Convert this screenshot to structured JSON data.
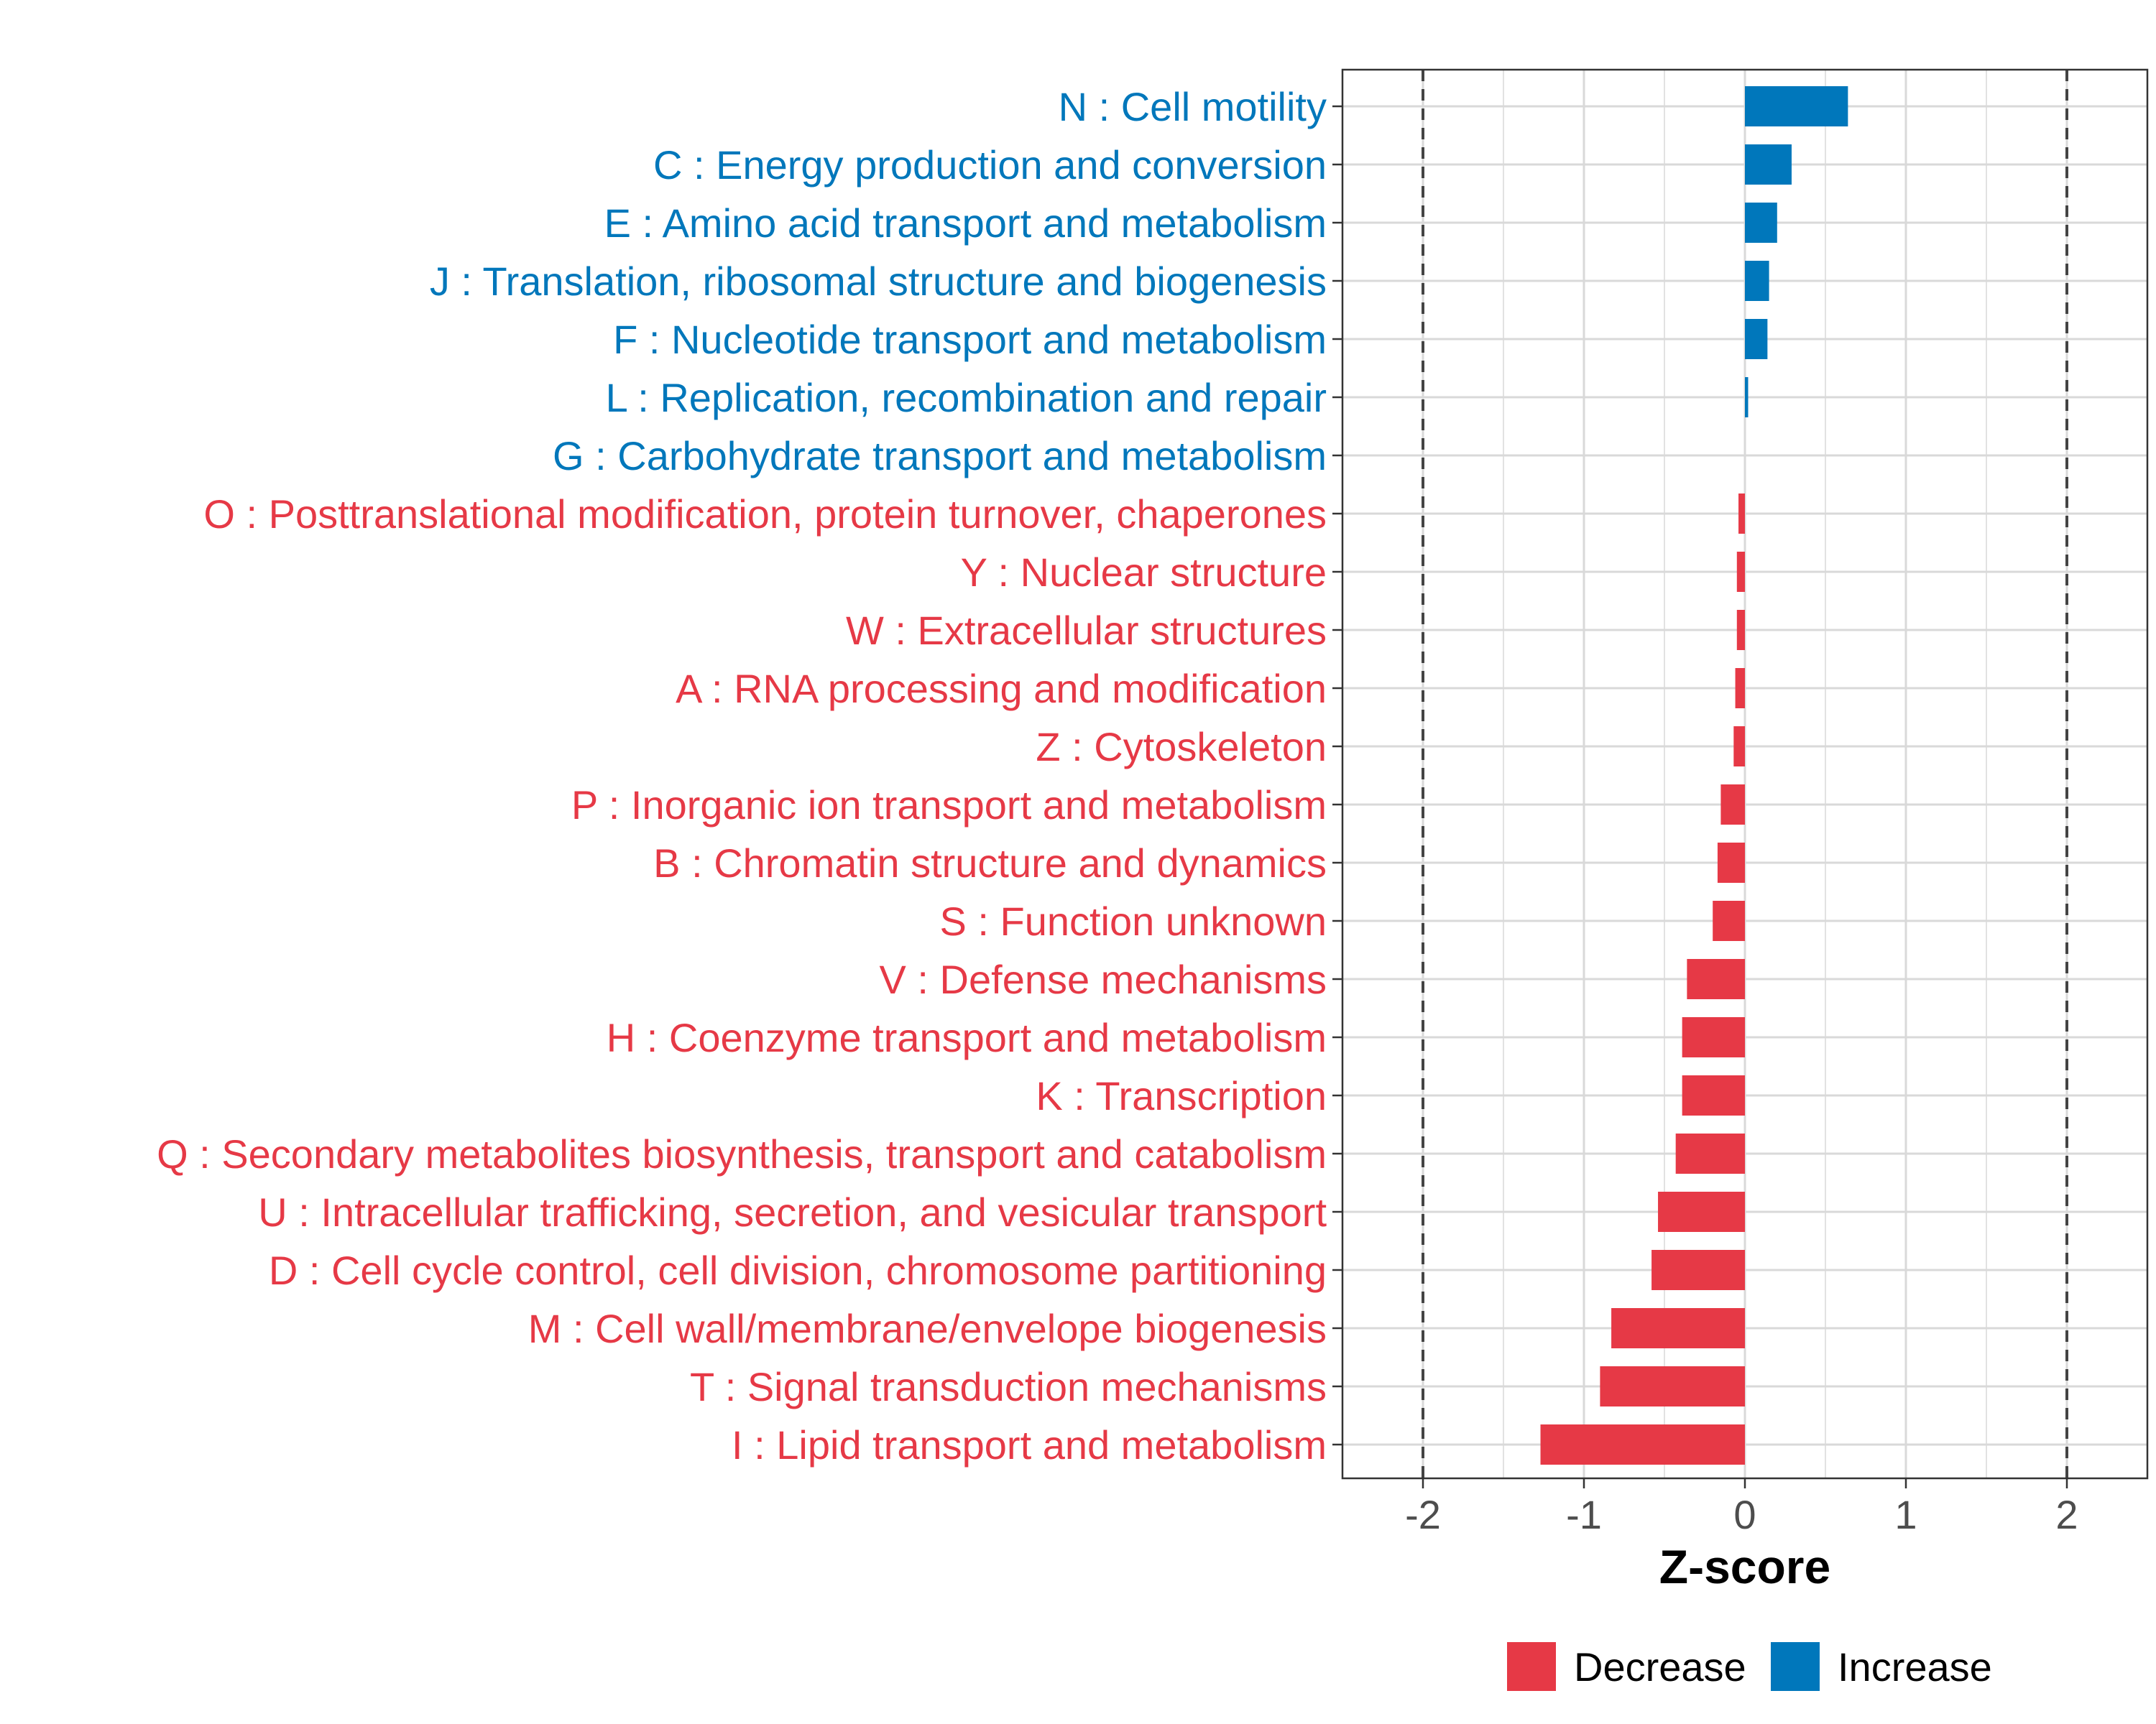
{
  "chart_data": {
    "type": "bar",
    "orientation": "horizontal",
    "title": "",
    "xlabel": "Z-score",
    "ylabel": "",
    "xlim": [
      -2.5,
      2.5
    ],
    "xticks": [
      -2,
      -1,
      0,
      1,
      2
    ],
    "xtick_labels": [
      "-2",
      "-1",
      "0",
      "1",
      "2"
    ],
    "reference_lines": [
      -2,
      2
    ],
    "grid": true,
    "legend": {
      "position": "bottom",
      "entries": [
        {
          "label": "Decrease",
          "color": "#E63946"
        },
        {
          "label": "Increase",
          "color": "#0077BB"
        }
      ]
    },
    "colors": {
      "Decrease": "#E63946",
      "Increase": "#0077BB"
    },
    "categories": [
      "N : Cell motility",
      "C : Energy production and conversion",
      "E : Amino acid transport and metabolism",
      "J : Translation, ribosomal structure and biogenesis",
      "F : Nucleotide transport and metabolism",
      "L : Replication, recombination and repair",
      "G : Carbohydrate transport and metabolism",
      "O : Posttranslational modification, protein turnover, chaperones",
      "Y : Nuclear structure",
      "W : Extracellular structures",
      "A : RNA processing and modification",
      "Z : Cytoskeleton",
      "P : Inorganic ion transport and metabolism",
      "B : Chromatin structure and dynamics",
      "S : Function unknown",
      "V : Defense mechanisms",
      "H : Coenzyme transport and metabolism",
      "K : Transcription",
      "Q : Secondary metabolites biosynthesis, transport and catabolism",
      "U : Intracellular trafficking, secretion, and vesicular transport",
      "D : Cell cycle control, cell division, chromosome partitioning",
      "M : Cell wall/membrane/envelope biogenesis",
      "T : Signal transduction mechanisms",
      "I : Lipid transport and metabolism"
    ],
    "values": [
      0.64,
      0.29,
      0.2,
      0.15,
      0.14,
      0.02,
      0.0,
      -0.04,
      -0.05,
      -0.05,
      -0.06,
      -0.07,
      -0.15,
      -0.17,
      -0.2,
      -0.36,
      -0.39,
      -0.39,
      -0.43,
      -0.54,
      -0.58,
      -0.83,
      -0.9,
      -1.27
    ],
    "direction": [
      "Increase",
      "Increase",
      "Increase",
      "Increase",
      "Increase",
      "Increase",
      "Increase",
      "Decrease",
      "Decrease",
      "Decrease",
      "Decrease",
      "Decrease",
      "Decrease",
      "Decrease",
      "Decrease",
      "Decrease",
      "Decrease",
      "Decrease",
      "Decrease",
      "Decrease",
      "Decrease",
      "Decrease",
      "Decrease",
      "Decrease"
    ]
  }
}
